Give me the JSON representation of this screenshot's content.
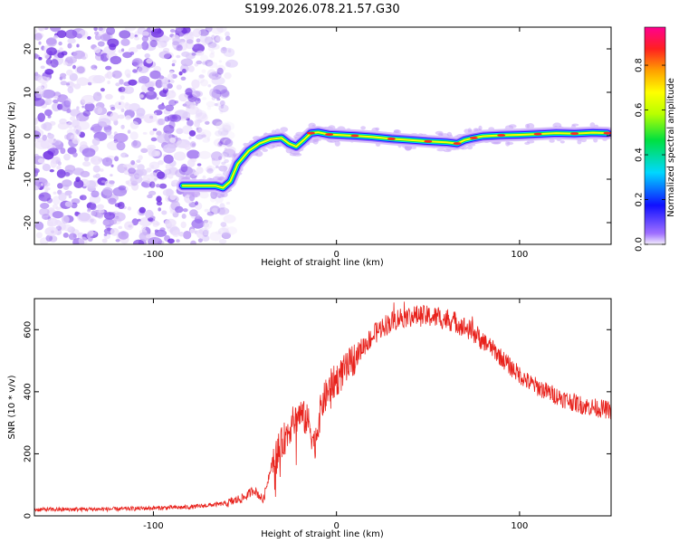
{
  "chart_data": [
    {
      "type": "heatmap",
      "title": "S199.2026.078.21.57.G30",
      "xlabel": "Height of straight line (km)",
      "ylabel": "Frequency (Hz)",
      "xlim": [
        -165,
        150
      ],
      "ylim": [
        -25,
        25
      ],
      "x_ticks": [
        -100,
        0,
        100
      ],
      "x_tick_labels": [
        "-100",
        "0",
        "100"
      ],
      "y_ticks": [
        -20,
        -10,
        0,
        10,
        20
      ],
      "y_tick_labels": [
        "-20",
        "-10",
        "0",
        "10",
        "20"
      ],
      "colorbar": {
        "label": "Normalized spectral amplitude",
        "range": [
          0,
          0.97
        ],
        "ticks": [
          0,
          0.2,
          0.4,
          0.6,
          0.8
        ],
        "tick_labels": [
          "0.0",
          "0.2",
          "0.4",
          "0.6",
          "0.8"
        ],
        "colormap": "rainbow (purple-blue-cyan-green-yellow-orange-red-magenta)"
      },
      "noise_region_x": [
        -165,
        -62
      ],
      "ridge": [
        [
          -84,
          -11.5
        ],
        [
          -78,
          -11.5
        ],
        [
          -72,
          -11.5
        ],
        [
          -66,
          -11.5
        ],
        [
          -62,
          -12
        ],
        [
          -58,
          -10.5
        ],
        [
          -54,
          -6.5
        ],
        [
          -48,
          -3.5
        ],
        [
          -42,
          -1.8
        ],
        [
          -36,
          -0.8
        ],
        [
          -30,
          -0.5
        ],
        [
          -26,
          -1.8
        ],
        [
          -22,
          -2.5
        ],
        [
          -18,
          -1.0
        ],
        [
          -14,
          0.6
        ],
        [
          -10,
          0.8
        ],
        [
          -4,
          0.3
        ],
        [
          0,
          0.2
        ],
        [
          10,
          0.0
        ],
        [
          20,
          -0.3
        ],
        [
          30,
          -0.7
        ],
        [
          40,
          -1.0
        ],
        [
          50,
          -1.3
        ],
        [
          60,
          -1.5
        ],
        [
          66,
          -1.8
        ],
        [
          70,
          -1.0
        ],
        [
          75,
          -0.5
        ],
        [
          80,
          -0.1
        ],
        [
          90,
          0.1
        ],
        [
          100,
          0.2
        ],
        [
          110,
          0.4
        ],
        [
          120,
          0.6
        ],
        [
          130,
          0.5
        ],
        [
          140,
          0.7
        ],
        [
          148,
          0.6
        ]
      ]
    },
    {
      "type": "line",
      "title": "",
      "xlabel": "Height of straight line (km)",
      "ylabel": "SNR (10 * v/v)",
      "xlim": [
        -165,
        150
      ],
      "ylim": [
        0,
        700
      ],
      "x_ticks": [
        -100,
        0,
        100
      ],
      "x_tick_labels": [
        "-100",
        "0",
        "100"
      ],
      "y_ticks": [
        0,
        200,
        400,
        600
      ],
      "y_tick_labels": [
        "0",
        "200",
        "400",
        "600"
      ],
      "series": [
        {
          "name": "SNR",
          "color": "#e8221c",
          "envelope": [
            [
              -165,
              20
            ],
            [
              -120,
              22
            ],
            [
              -80,
              28
            ],
            [
              -60,
              40
            ],
            [
              -50,
              60
            ],
            [
              -45,
              85
            ],
            [
              -40,
              50
            ],
            [
              -35,
              180
            ],
            [
              -30,
              230
            ],
            [
              -25,
              290
            ],
            [
              -20,
              330
            ],
            [
              -15,
              300
            ],
            [
              -12,
              230
            ],
            [
              -8,
              360
            ],
            [
              -3,
              420
            ],
            [
              5,
              470
            ],
            [
              15,
              550
            ],
            [
              25,
              610
            ],
            [
              35,
              640
            ],
            [
              45,
              645
            ],
            [
              55,
              640
            ],
            [
              65,
              625
            ],
            [
              75,
              590
            ],
            [
              85,
              540
            ],
            [
              95,
              480
            ],
            [
              105,
              430
            ],
            [
              115,
              400
            ],
            [
              125,
              375
            ],
            [
              135,
              355
            ],
            [
              150,
              340
            ]
          ]
        }
      ]
    }
  ]
}
